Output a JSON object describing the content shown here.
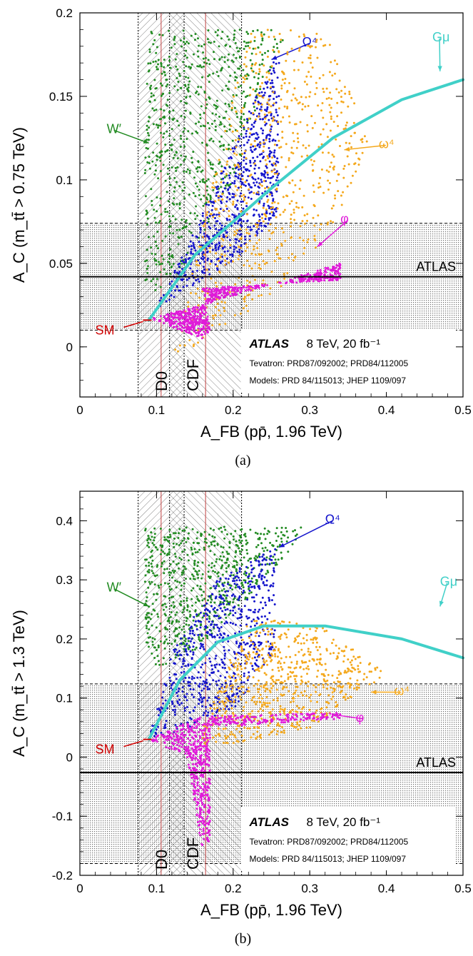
{
  "chart_data": [
    {
      "type": "scatter",
      "panel_label": "(a)",
      "xlabel": "A_FB (pp̄, 1.96 TeV)",
      "ylabel": "A_C (m_tt̄ > 0.75 TeV)",
      "xlim": [
        0,
        0.5
      ],
      "ylim": [
        -0.03,
        0.2
      ],
      "xticks": [
        0,
        0.1,
        0.2,
        0.3,
        0.4,
        0.5
      ],
      "xtick_labels": [
        "0",
        "0.1",
        "0.2",
        "0.3",
        "0.4",
        "0.5"
      ],
      "yticks": [
        0,
        0.05,
        0.1,
        0.15,
        0.2
      ],
      "ytick_labels": [
        "0",
        "0.05",
        "0.1",
        "0.15",
        "0.2"
      ],
      "atlas_measurement": {
        "label": "ATLAS",
        "central": 0.042,
        "band": [
          0.01,
          0.074
        ]
      },
      "d0_band": {
        "label": "D0",
        "central": 0.106,
        "band": [
          0.076,
          0.136
        ]
      },
      "cdf_band": {
        "label": "CDF",
        "central": 0.164,
        "band": [
          0.117,
          0.211
        ]
      },
      "sm_point": {
        "label": "SM",
        "x": 0.088,
        "y": 0.016
      },
      "legend": {
        "experiment": "ATLAS",
        "energy": "8 TeV, 20 fb⁻¹",
        "line1": "Tevatron: PRD87/092002; PRD84/112005",
        "line2": "Models: PRD 84/115013; JHEP 1109/097",
        "position": "bottom-right"
      },
      "models": [
        {
          "name": "W′",
          "color": "#228b22",
          "label_pos": [
            0.035,
            0.128
          ],
          "arrow_to": [
            0.09,
            0.122
          ],
          "region": [
            [
              0.085,
              0.19
            ],
            [
              0.24,
              0.19
            ],
            [
              0.27,
              0.19
            ],
            [
              0.2,
              0.1
            ],
            [
              0.14,
              0.05
            ],
            [
              0.1,
              0.03
            ],
            [
              0.085,
              0.04
            ]
          ]
        },
        {
          "name": "Ω⁴",
          "color": "#1515cc",
          "label_pos": [
            0.29,
            0.18
          ],
          "arrow_to": [
            0.25,
            0.172
          ],
          "region": [
            [
              0.095,
              0.02
            ],
            [
              0.14,
              0.06
            ],
            [
              0.26,
              0.18
            ],
            [
              0.26,
              0.08
            ],
            [
              0.2,
              0.05
            ],
            [
              0.14,
              0.035
            ]
          ]
        },
        {
          "name": "ω⁴",
          "color": "#f4a81c",
          "label_pos": [
            0.39,
            0.119
          ],
          "arrow_to": [
            0.345,
            0.118
          ],
          "region": [
            [
              0.12,
              -0.005
            ],
            [
              0.22,
              0.19
            ],
            [
              0.32,
              0.19
            ],
            [
              0.38,
              0.125
            ],
            [
              0.33,
              0.07
            ],
            [
              0.25,
              0.03
            ],
            [
              0.13,
              -0.005
            ]
          ]
        },
        {
          "name": "φ",
          "color": "#e01bd9",
          "label_pos": [
            0.34,
            0.074
          ],
          "arrow_to": [
            0.31,
            0.06
          ],
          "region": [
            [
              0.09,
              0.017
            ],
            [
              0.16,
              0.025
            ],
            [
              0.34,
              0.05
            ],
            [
              0.34,
              0.04
            ],
            [
              0.16,
              0.035
            ],
            [
              0.17,
              0.01
            ],
            [
              0.16,
              0.005
            ]
          ]
        },
        {
          "name": "Gμ",
          "color": "#40d0c8",
          "label_pos": [
            0.46,
            0.183
          ],
          "arrow_to": [
            0.47,
            0.165
          ],
          "curve": [
            [
              0.09,
              0.016
            ],
            [
              0.15,
              0.055
            ],
            [
              0.25,
              0.095
            ],
            [
              0.33,
              0.125
            ],
            [
              0.42,
              0.148
            ],
            [
              0.5,
              0.16
            ]
          ]
        }
      ]
    },
    {
      "type": "scatter",
      "panel_label": "(b)",
      "xlabel": "A_FB (pp̄, 1.96 TeV)",
      "ylabel": "A_C (m_tt̄ > 1.3 TeV)",
      "xlim": [
        0,
        0.5
      ],
      "ylim": [
        -0.2,
        0.45
      ],
      "xticks": [
        0,
        0.1,
        0.2,
        0.3,
        0.4,
        0.5
      ],
      "xtick_labels": [
        "0",
        "0.1",
        "0.2",
        "0.3",
        "0.4",
        "0.5"
      ],
      "yticks": [
        -0.2,
        -0.1,
        0,
        0.1,
        0.2,
        0.3,
        0.4
      ],
      "ytick_labels": [
        "-0.2",
        "-0.1",
        "0",
        "0.1",
        "0.2",
        "0.3",
        "0.4"
      ],
      "atlas_measurement": {
        "label": "ATLAS",
        "central": -0.026,
        "band": [
          -0.18,
          0.124
        ]
      },
      "d0_band": {
        "label": "D0",
        "central": 0.106,
        "band": [
          0.076,
          0.136
        ]
      },
      "cdf_band": {
        "label": "CDF",
        "central": 0.164,
        "band": [
          0.117,
          0.211
        ]
      },
      "sm_point": {
        "label": "SM",
        "x": 0.088,
        "y": 0.03
      },
      "legend": {
        "experiment": "ATLAS",
        "energy": "8 TeV, 20 fb⁻¹",
        "line1": "Tevatron: PRD87/092002; PRD84/112005",
        "line2": "Models: PRD 84/115013; JHEP 1109/097",
        "position": "bottom-right"
      },
      "models": [
        {
          "name": "W′",
          "color": "#228b22",
          "label_pos": [
            0.035,
            0.28
          ],
          "arrow_to": [
            0.09,
            0.255
          ],
          "region": [
            [
              0.085,
              0.39
            ],
            [
              0.27,
              0.39
            ],
            [
              0.3,
              0.39
            ],
            [
              0.22,
              0.27
            ],
            [
              0.15,
              0.18
            ],
            [
              0.1,
              0.15
            ],
            [
              0.085,
              0.2
            ]
          ]
        },
        {
          "name": "Ω⁴",
          "color": "#1515cc",
          "label_pos": [
            0.32,
            0.395
          ],
          "arrow_to": [
            0.26,
            0.355
          ],
          "region": [
            [
              0.09,
              0.03
            ],
            [
              0.12,
              0.18
            ],
            [
              0.18,
              0.3
            ],
            [
              0.255,
              0.355
            ],
            [
              0.255,
              0.18
            ],
            [
              0.2,
              0.08
            ],
            [
              0.12,
              0.04
            ]
          ]
        },
        {
          "name": "ω⁴",
          "color": "#f4a81c",
          "label_pos": [
            0.41,
            0.105
          ],
          "arrow_to": [
            0.38,
            0.11
          ],
          "region": [
            [
              0.15,
              0.02
            ],
            [
              0.22,
              0.24
            ],
            [
              0.32,
              0.22
            ],
            [
              0.4,
              0.14
            ],
            [
              0.38,
              0.12
            ],
            [
              0.3,
              0.05
            ],
            [
              0.2,
              0.02
            ]
          ]
        },
        {
          "name": "φ",
          "color": "#e01bd9",
          "label_pos": [
            0.36,
            0.06
          ],
          "arrow_to": [
            0.33,
            0.072
          ],
          "region": [
            [
              0.09,
              0.03
            ],
            [
              0.16,
              0.07
            ],
            [
              0.34,
              0.075
            ],
            [
              0.34,
              0.065
            ],
            [
              0.17,
              0.05
            ],
            [
              0.17,
              -0.14
            ],
            [
              0.16,
              -0.16
            ],
            [
              0.14,
              0.0
            ]
          ]
        },
        {
          "name": "Gμ",
          "color": "#40d0c8",
          "label_pos": [
            0.47,
            0.29
          ],
          "arrow_to": [
            0.47,
            0.255
          ],
          "curve": [
            [
              0.09,
              0.03
            ],
            [
              0.13,
              0.13
            ],
            [
              0.18,
              0.195
            ],
            [
              0.24,
              0.222
            ],
            [
              0.32,
              0.222
            ],
            [
              0.42,
              0.2
            ],
            [
              0.5,
              0.168
            ]
          ]
        }
      ]
    }
  ]
}
